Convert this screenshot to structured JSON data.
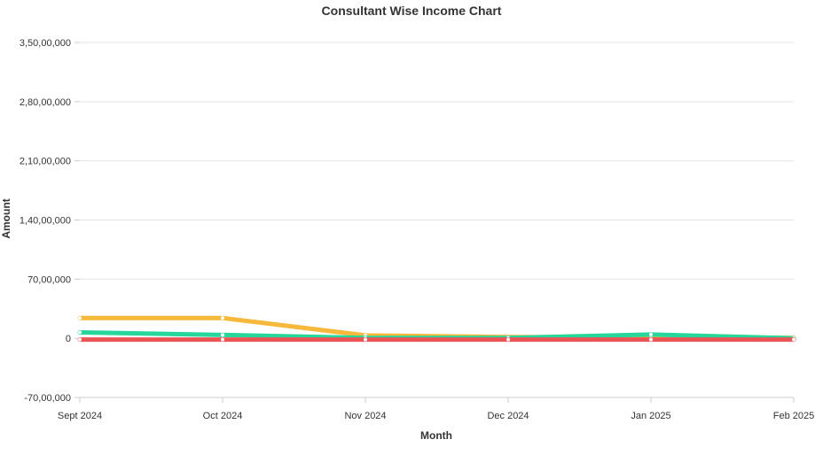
{
  "chart_data": {
    "type": "line",
    "title": "Consultant Wise Income Chart",
    "xlabel": "Month",
    "ylabel": "Amount",
    "categories": [
      "Sept 2024",
      "Oct 2024",
      "Nov 2024",
      "Dec 2024",
      "Jan 2025",
      "Feb 2025"
    ],
    "y_ticks": [
      -7000000,
      0,
      7000000,
      14000000,
      21000000,
      28000000,
      35000000
    ],
    "y_tick_labels": [
      "-70,00,000",
      "0",
      "70,00,000",
      "1,40,00,000",
      "2,10,00,000",
      "2,80,00,000",
      "3,50,00,000"
    ],
    "ylim": [
      -7000000,
      35000000
    ],
    "grid": true,
    "legend": "none",
    "series": [
      {
        "color": "#f6b93b",
        "values": [
          2400000,
          2400000,
          350000,
          150000,
          100000,
          50000
        ]
      },
      {
        "color": "#26d69b",
        "values": [
          700000,
          400000,
          50000,
          50000,
          450000,
          0
        ]
      },
      {
        "color": "#ea5455",
        "values": [
          -150000,
          -150000,
          -150000,
          -150000,
          -150000,
          -150000
        ]
      }
    ]
  }
}
